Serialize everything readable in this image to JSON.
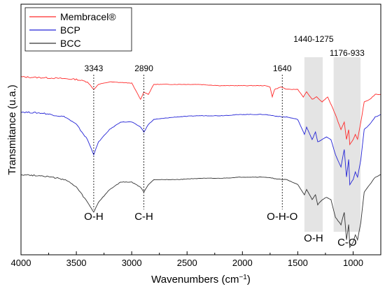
{
  "chart_data": {
    "type": "line",
    "xlabel_main": "Wavenumbers (cm",
    "xlabel_sup": "−1",
    "xlabel_end": ")",
    "ylabel": "Transmitance (u.a.)",
    "xlim": [
      4000,
      750
    ],
    "x_reversed": true,
    "x_ticks": [
      {
        "value": 4000,
        "label": "4000"
      },
      {
        "value": 3500,
        "label": "3500"
      },
      {
        "value": 3000,
        "label": "3000"
      },
      {
        "value": 2500,
        "label": "2500"
      },
      {
        "value": 2000,
        "label": "2000"
      },
      {
        "value": 1500,
        "label": "1500"
      },
      {
        "value": 1000,
        "label": "1000"
      }
    ],
    "y_relative_range": [
      0,
      100
    ],
    "legend": {
      "placement": "top-left",
      "entries": [
        {
          "name": "Membracel®",
          "color": "#ff2a2a"
        },
        {
          "name": "BCP",
          "color": "#2323d6"
        },
        {
          "name": "BCC",
          "color": "#333333"
        }
      ]
    },
    "series": [
      {
        "name": "Membracel®",
        "color": "#ff2a2a",
        "points": [
          [
            4000,
            71
          ],
          [
            3700,
            70.5
          ],
          [
            3500,
            70
          ],
          [
            3400,
            69
          ],
          [
            3343,
            66
          ],
          [
            3300,
            68
          ],
          [
            3200,
            69
          ],
          [
            3000,
            68.5
          ],
          [
            2920,
            62
          ],
          [
            2890,
            65
          ],
          [
            2850,
            64
          ],
          [
            2800,
            68
          ],
          [
            2600,
            68
          ],
          [
            2400,
            68
          ],
          [
            2200,
            67.5
          ],
          [
            2000,
            67.5
          ],
          [
            1800,
            67.5
          ],
          [
            1750,
            67
          ],
          [
            1730,
            63
          ],
          [
            1710,
            66
          ],
          [
            1650,
            67
          ],
          [
            1600,
            66
          ],
          [
            1500,
            66
          ],
          [
            1450,
            63
          ],
          [
            1420,
            65
          ],
          [
            1370,
            62
          ],
          [
            1330,
            63
          ],
          [
            1280,
            61
          ],
          [
            1230,
            63
          ],
          [
            1160,
            56
          ],
          [
            1110,
            50
          ],
          [
            1080,
            53
          ],
          [
            1060,
            46
          ],
          [
            1040,
            50
          ],
          [
            1030,
            44
          ],
          [
            1000,
            46
          ],
          [
            980,
            48
          ],
          [
            960,
            46
          ],
          [
            930,
            53
          ],
          [
            900,
            61
          ],
          [
            850,
            62
          ],
          [
            800,
            64
          ],
          [
            750,
            64
          ]
        ]
      },
      {
        "name": "BCP",
        "color": "#2323d6",
        "points": [
          [
            4000,
            57
          ],
          [
            3800,
            56.5
          ],
          [
            3600,
            55
          ],
          [
            3500,
            52
          ],
          [
            3400,
            46
          ],
          [
            3343,
            40
          ],
          [
            3300,
            45
          ],
          [
            3200,
            50
          ],
          [
            3100,
            53
          ],
          [
            3000,
            53
          ],
          [
            2920,
            51
          ],
          [
            2890,
            49
          ],
          [
            2850,
            52
          ],
          [
            2800,
            54
          ],
          [
            2600,
            55
          ],
          [
            2400,
            55.5
          ],
          [
            2200,
            55.5
          ],
          [
            2000,
            56
          ],
          [
            1800,
            56
          ],
          [
            1640,
            55
          ],
          [
            1600,
            55
          ],
          [
            1500,
            54
          ],
          [
            1440,
            48
          ],
          [
            1420,
            51
          ],
          [
            1370,
            46
          ],
          [
            1340,
            49
          ],
          [
            1320,
            45
          ],
          [
            1280,
            46
          ],
          [
            1240,
            47
          ],
          [
            1200,
            46
          ],
          [
            1160,
            40
          ],
          [
            1110,
            35
          ],
          [
            1080,
            42
          ],
          [
            1060,
            31
          ],
          [
            1040,
            38
          ],
          [
            1030,
            28
          ],
          [
            1000,
            30
          ],
          [
            980,
            33
          ],
          [
            960,
            31
          ],
          [
            930,
            38
          ],
          [
            900,
            50
          ],
          [
            850,
            52
          ],
          [
            800,
            55
          ],
          [
            750,
            56
          ]
        ]
      },
      {
        "name": "BCC",
        "color": "#333333",
        "points": [
          [
            4000,
            32
          ],
          [
            3800,
            31.5
          ],
          [
            3600,
            30
          ],
          [
            3500,
            27
          ],
          [
            3400,
            21
          ],
          [
            3343,
            17
          ],
          [
            3300,
            21
          ],
          [
            3200,
            26
          ],
          [
            3100,
            29
          ],
          [
            3000,
            29
          ],
          [
            2920,
            27
          ],
          [
            2890,
            25
          ],
          [
            2850,
            28
          ],
          [
            2800,
            30
          ],
          [
            2600,
            30
          ],
          [
            2400,
            30.5
          ],
          [
            2200,
            30.5
          ],
          [
            2000,
            31
          ],
          [
            1800,
            31
          ],
          [
            1640,
            30
          ],
          [
            1600,
            30
          ],
          [
            1500,
            28
          ],
          [
            1440,
            24
          ],
          [
            1420,
            26
          ],
          [
            1370,
            22
          ],
          [
            1340,
            24
          ],
          [
            1320,
            20
          ],
          [
            1280,
            22
          ],
          [
            1240,
            23
          ],
          [
            1200,
            22
          ],
          [
            1160,
            15
          ],
          [
            1110,
            12
          ],
          [
            1080,
            17
          ],
          [
            1060,
            6
          ],
          [
            1040,
            12
          ],
          [
            1030,
            3
          ],
          [
            1000,
            5
          ],
          [
            980,
            8
          ],
          [
            960,
            6
          ],
          [
            930,
            13
          ],
          [
            900,
            25
          ],
          [
            850,
            28
          ],
          [
            800,
            31
          ],
          [
            750,
            32
          ]
        ]
      }
    ],
    "peak_markers": [
      {
        "x": 3343,
        "label": "3343",
        "group": "O-H"
      },
      {
        "x": 2890,
        "label": "2890",
        "group": "C-H"
      },
      {
        "x": 1640,
        "label": "1640",
        "group": "O-H-O"
      }
    ],
    "bands": [
      {
        "from": 1440,
        "to": 1275,
        "label": "1440-1275",
        "group": "O-H"
      },
      {
        "from": 1176,
        "to": 933,
        "label": "1176-933",
        "group": "C-O"
      }
    ]
  }
}
